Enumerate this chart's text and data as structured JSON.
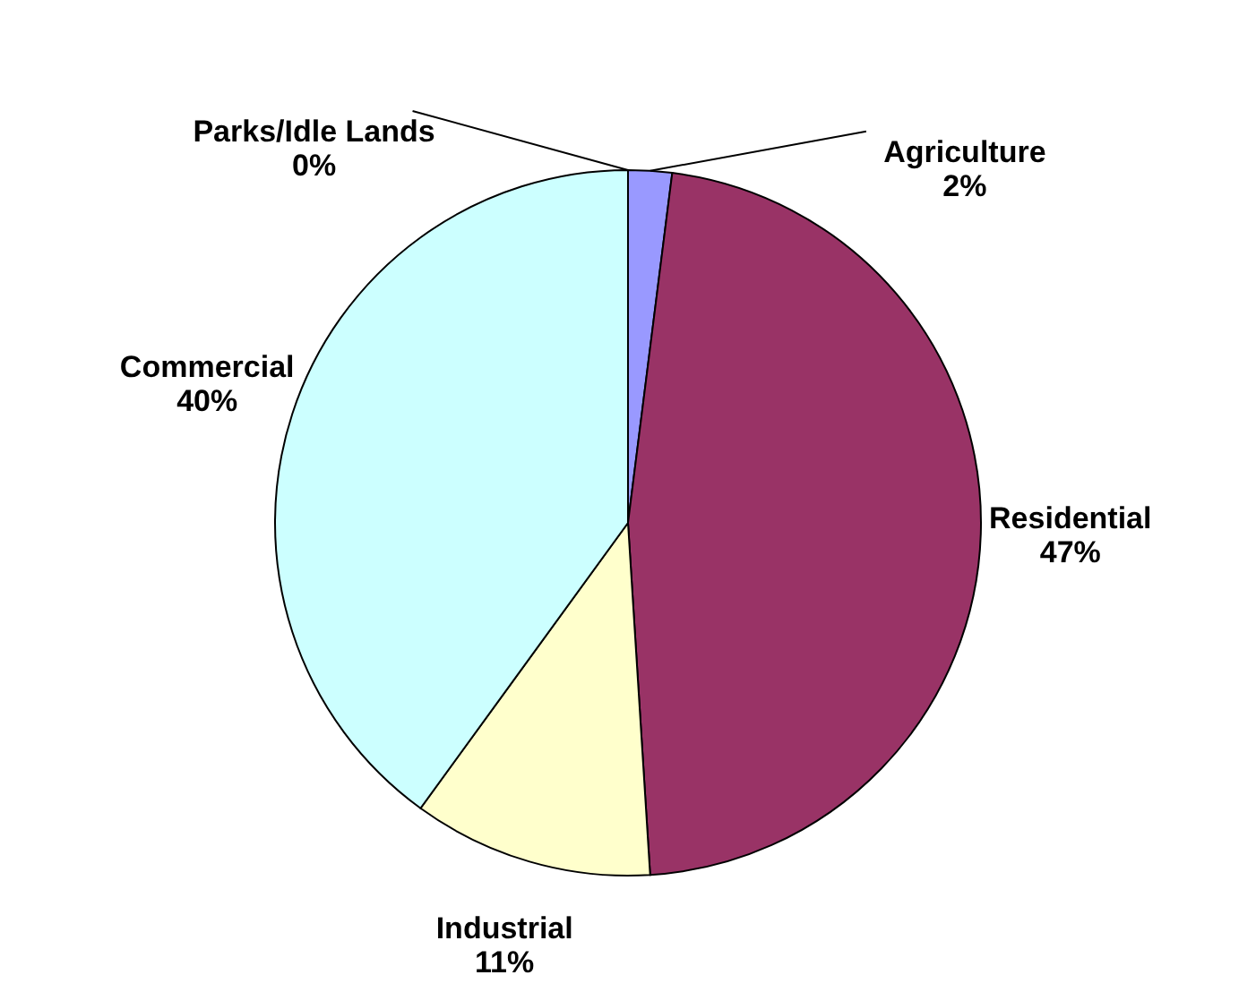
{
  "chart_data": {
    "type": "pie",
    "categories": [
      "Agriculture",
      "Residential",
      "Industrial",
      "Commercial",
      "Parks/Idle Lands"
    ],
    "values": [
      2,
      47,
      11,
      40,
      0
    ],
    "colors": [
      "#9999ff",
      "#993366",
      "#ffffcc",
      "#ccffff",
      "#660066"
    ],
    "value_labels": [
      "2%",
      "47%",
      "11%",
      "40%",
      "0%"
    ]
  }
}
